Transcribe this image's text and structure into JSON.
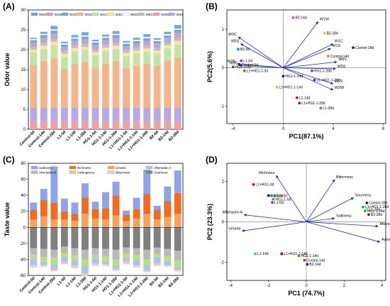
{
  "panels": {
    "A": "(A)",
    "B": "(B)",
    "C": "(C)",
    "D": "(D)"
  },
  "chart_data": [
    {
      "id": "A",
      "type": "bar",
      "stacked": true,
      "title": "",
      "xlabel": "",
      "ylabel": "Odor value",
      "ylim": [
        0,
        30
      ],
      "yticks": [
        0,
        5,
        10,
        15,
        20,
        25,
        30
      ],
      "categories": [
        "Control-0d",
        "Control-14d",
        "Control-28d",
        "L1-0d",
        "L1-14d",
        "L1-28d",
        "HG1-1-0d",
        "HG1-1-14d",
        "HG1-1-28d",
        "L1+HG1-1-0d",
        "L1+HG1-1-14d",
        "L1+HG1-1-28d",
        "B2-0d",
        "B2-14d",
        "B2-28d"
      ],
      "legend": {
        "placement": "top",
        "entries": [
          "W5S",
          "W1W",
          "W2S",
          "W1S",
          "W1C",
          "W3C",
          "W6S",
          "W5C",
          "W2W",
          "W3S"
        ]
      },
      "series": [
        {
          "name": "W2W",
          "color": "#f2a0a0",
          "values": [
            2.0,
            2.0,
            2.0,
            2.0,
            2.0,
            2.0,
            2.0,
            2.0,
            2.0,
            2.0,
            2.0,
            2.0,
            2.0,
            2.0,
            2.0
          ]
        },
        {
          "name": "W3S",
          "color": "#b9a9e3",
          "values": [
            3.5,
            3.5,
            3.5,
            3.5,
            3.5,
            3.5,
            3.5,
            3.5,
            3.5,
            3.5,
            3.5,
            3.5,
            3.5,
            3.5,
            3.5
          ]
        },
        {
          "name": "W1S",
          "color": "#f5b58a",
          "values": [
            10.7,
            11.7,
            12.4,
            9.7,
            10.9,
            11.4,
            10.1,
            11.0,
            11.7,
            9.9,
            10.5,
            11.0,
            10.5,
            11.8,
            12.6
          ]
        },
        {
          "name": "W1C",
          "color": "#c4e3a6",
          "values": [
            3.0,
            3.0,
            3.2,
            3.0,
            3.2,
            3.0,
            3.0,
            3.2,
            3.0,
            3.0,
            3.0,
            3.0,
            3.0,
            3.0,
            3.2
          ]
        },
        {
          "name": "W3C",
          "color": "#f6e79a",
          "values": [
            0.8,
            0.8,
            0.9,
            0.8,
            0.8,
            0.8,
            0.8,
            0.8,
            0.8,
            0.8,
            0.8,
            0.8,
            0.8,
            0.8,
            0.9
          ]
        },
        {
          "name": "W5C",
          "color": "#bfbfbf",
          "values": [
            0.7,
            0.7,
            0.7,
            0.7,
            0.7,
            0.7,
            0.7,
            0.7,
            0.7,
            0.7,
            0.7,
            0.7,
            0.7,
            0.7,
            0.7
          ]
        },
        {
          "name": "W1W",
          "color": "#c8a2c8",
          "values": [
            1.1,
            1.3,
            1.4,
            1.0,
            1.1,
            1.2,
            1.1,
            1.2,
            1.3,
            1.0,
            1.1,
            1.2,
            1.1,
            1.2,
            1.4
          ]
        },
        {
          "name": "W5S",
          "color": "#6fa8dc",
          "values": [
            0.6,
            0.7,
            0.7,
            0.6,
            0.6,
            0.7,
            0.6,
            0.6,
            0.7,
            0.6,
            0.6,
            0.7,
            0.6,
            0.6,
            0.7
          ]
        },
        {
          "name": "W6S",
          "color": "#ffffff",
          "values": [
            0.3,
            0.3,
            0.3,
            0.3,
            0.3,
            0.3,
            0.3,
            0.3,
            0.3,
            0.3,
            0.3,
            0.3,
            0.3,
            0.3,
            0.3
          ]
        },
        {
          "name": "W2S",
          "color": "#6fa8dc",
          "values": [
            0.3,
            0.5,
            0.9,
            0.4,
            0.6,
            0.8,
            0.4,
            0.5,
            0.7,
            0.4,
            0.5,
            0.7,
            0.4,
            0.6,
            0.9
          ]
        }
      ]
    },
    {
      "id": "B",
      "type": "scatter",
      "title": "",
      "xlabel": "PC1(87.1%)",
      "ylabel": "PC2(5.6%)",
      "xlim": [
        -4.5,
        8.2
      ],
      "ylim": [
        -1.45,
        1.5
      ],
      "xticks": [
        -4,
        0,
        4,
        8
      ],
      "yticks": [
        -1,
        0,
        1
      ],
      "points": [
        {
          "label": "B2-14d",
          "x": 0.8,
          "y": 1.3,
          "color": "#e040fb"
        },
        {
          "label": "B2-28d",
          "x": 3.3,
          "y": 0.9,
          "color": "#fbc02d"
        },
        {
          "label": "Control-28d",
          "x": 5.6,
          "y": 0.52,
          "color": "#222222"
        },
        {
          "label": "Control-14d",
          "x": 3.6,
          "y": 0.3,
          "color": "#c58a44"
        },
        {
          "label": "B2-0d",
          "x": -3.6,
          "y": 0.48,
          "color": "#1e88e5"
        },
        {
          "label": "L1-0d",
          "x": -3.35,
          "y": 0.18,
          "color": "#9c27b0"
        },
        {
          "label": "Control-0d",
          "x": -3.5,
          "y": 0.08,
          "color": "#333333"
        },
        {
          "label": "HG1-1-0d",
          "x": -4.0,
          "y": 0.02,
          "color": "#3949ab"
        },
        {
          "label": "L1+HG1-1-0d",
          "x": -3.1,
          "y": -0.08,
          "color": "#e53935"
        },
        {
          "label": "HG1-1-14d",
          "x": 0.0,
          "y": -0.22,
          "color": "#1a237e"
        },
        {
          "label": "HG1-1-28d",
          "x": 2.3,
          "y": -0.08,
          "color": "#795548"
        },
        {
          "label": "L1+HG1-1-28d",
          "x": 2.5,
          "y": -0.32,
          "color": "#7b1fa2"
        },
        {
          "label": "L1+HG1-1-14d",
          "x": -0.5,
          "y": -0.5,
          "color": "#76ff03"
        },
        {
          "label": "L1-14d",
          "x": 1.1,
          "y": -0.78,
          "color": "#b71c1c"
        },
        {
          "label": "L1+HG1-1-28d",
          "x": 1.3,
          "y": -0.92,
          "color": "#283593"
        },
        {
          "label": "L1-28d",
          "x": 3.0,
          "y": -1.05,
          "color": "#43a047"
        }
      ],
      "vectors": [
        {
          "label": "W1W",
          "x": 2.8,
          "y": 1.2
        },
        {
          "label": "W3C",
          "x": -3.6,
          "y": 0.8
        },
        {
          "label": "W5S",
          "x": -3.4,
          "y": 0.62
        },
        {
          "label": "W1S",
          "x": 3.8,
          "y": 0.5
        },
        {
          "label": "W1C",
          "x": 4.0,
          "y": 0.62
        },
        {
          "label": "W3S",
          "x": -3.7,
          "y": 0.1
        },
        {
          "label": "W6S",
          "x": 4.3,
          "y": 0.15
        },
        {
          "label": "W5S",
          "x": 4.2,
          "y": -0.03
        },
        {
          "label": "W2S",
          "x": 4.0,
          "y": -0.42
        },
        {
          "label": "W2W",
          "x": 4.0,
          "y": -0.58
        },
        {
          "label": "W5C",
          "x": -3.5,
          "y": 0.05
        }
      ]
    },
    {
      "id": "C",
      "type": "bar",
      "stacked": true,
      "title": "",
      "xlabel": "",
      "ylabel": "Taste value",
      "ylim": [
        -60,
        80
      ],
      "yticks": [
        -60,
        -40,
        -20,
        0,
        20,
        40,
        60,
        80
      ],
      "categories": [
        "Control-0d",
        "Control-14d",
        "Control-28d",
        "L1-0d",
        "L1-14d",
        "L1-28d",
        "HG1-1-0d",
        "HG1-1-14d",
        "HG1-1-28d",
        "L1+HG1-1-0d",
        "L1+HG1-1-14d",
        "L1+HG1-1-28d",
        "B2-0d",
        "B2-14d",
        "B2-28d"
      ],
      "legend": {
        "placement": "top",
        "entries": [
          "Saltness",
          "Richness",
          "Umami",
          "Aftertaste-A",
          "Aftertaste-B",
          "Astringency",
          "Bitterness",
          "Sourness"
        ]
      },
      "positive_series": [
        {
          "name": "Umami",
          "color": "#f5a25d",
          "values": [
            10,
            14,
            10,
            10,
            8,
            17,
            11,
            10,
            15,
            8,
            11,
            17,
            10,
            13,
            17
          ]
        },
        {
          "name": "Richness",
          "color": "#f26b21",
          "values": [
            12,
            20,
            21,
            10,
            9,
            20,
            12,
            14,
            25,
            8,
            12,
            25,
            12,
            20,
            26
          ]
        },
        {
          "name": "Saltness",
          "color": "#8fa3e6",
          "values": [
            9,
            14,
            45,
            16,
            14,
            18,
            9,
            20,
            17,
            5,
            14,
            30,
            5,
            18,
            28
          ]
        }
      ],
      "negative_series": [
        {
          "name": "Sourness",
          "color": "#808080",
          "values": [
            -26,
            -27,
            -28,
            -24,
            -26,
            -28,
            -26,
            -27,
            -28,
            -25,
            -26,
            -28,
            -25,
            -27,
            -29
          ]
        },
        {
          "name": "Aftertaste-B",
          "color": "#b9b9b9",
          "values": [
            -8,
            -10,
            -10,
            -8,
            -9,
            -12,
            -8,
            -9,
            -12,
            -8,
            -9,
            -12,
            -8,
            -9,
            -12
          ]
        },
        {
          "name": "Astringency",
          "color": "#b7e07d",
          "values": [
            -5,
            -6,
            -8,
            -5,
            -6,
            -8,
            -5,
            -6,
            -8,
            -5,
            -6,
            -8,
            -4,
            -6,
            -8
          ]
        },
        {
          "name": "Aftertaste-A",
          "color": "#a9c6e8",
          "values": [
            -8,
            -4,
            -7,
            -6,
            -7,
            -10,
            -6,
            -4,
            -4,
            -5,
            -6,
            -6,
            -8,
            -5,
            -4
          ]
        },
        {
          "name": "Bitterness",
          "color": "#f2c9c0",
          "values": [
            -3,
            -2,
            -2,
            -3,
            -3,
            -3,
            -3,
            -2,
            -2,
            -3,
            -3,
            -2,
            -3,
            -2,
            -2
          ]
        }
      ]
    },
    {
      "id": "D",
      "type": "scatter",
      "title": "",
      "xlabel": "PC1 (74.7%)",
      "ylabel": "PC2 (23.3%)",
      "xlim": [
        -4.2,
        4.2
      ],
      "ylim": [
        -2.9,
        2.9
      ],
      "xticks": [
        -4,
        -2,
        0,
        2,
        4
      ],
      "yticks": [
        -2,
        0,
        2
      ],
      "points": [
        {
          "label": "L1+HG1-0d",
          "x": -2.8,
          "y": 1.85,
          "color": "#ad1457"
        },
        {
          "label": "Control-0d",
          "x": -2.0,
          "y": 1.3,
          "color": "#222222"
        },
        {
          "label": "B2-0d",
          "x": -1.85,
          "y": 1.3,
          "color": "#1e88e5"
        },
        {
          "label": "HG1-1-0d",
          "x": -1.75,
          "y": 1.12,
          "color": "#43a047"
        },
        {
          "label": "L1-0d",
          "x": -1.8,
          "y": 0.96,
          "color": "#9c27b0"
        },
        {
          "label": "Control-28d",
          "x": 3.2,
          "y": 0.94,
          "color": "#222222"
        },
        {
          "label": "L1+HG1-1-28d",
          "x": 3.0,
          "y": 0.74,
          "color": "#1e88e5"
        },
        {
          "label": "HG1-1-28d",
          "x": 3.1,
          "y": 0.54,
          "color": "#43a047"
        },
        {
          "label": "L1-28d",
          "x": 3.2,
          "y": 0.62,
          "color": "#76ff03"
        },
        {
          "label": "B2-28d",
          "x": 3.3,
          "y": 0.36,
          "color": "#283593"
        },
        {
          "label": "L1-14d",
          "x": -2.7,
          "y": -1.58,
          "color": "#26c6da"
        },
        {
          "label": "L1+HG1-1-14d",
          "x": -1.3,
          "y": -1.58,
          "color": "#8e0000"
        },
        {
          "label": "HG1-1-14d",
          "x": -0.4,
          "y": -1.68,
          "color": "#827717"
        },
        {
          "label": "Control-14d",
          "x": -0.1,
          "y": -1.9,
          "color": "#c0392b"
        },
        {
          "label": "B2-14d",
          "x": 0.05,
          "y": -2.1,
          "color": "#1a237e"
        }
      ],
      "vectors": [
        {
          "label": "Richness",
          "x": -1.6,
          "y": 2.3
        },
        {
          "label": "Bitterness",
          "x": 1.5,
          "y": 2.1
        },
        {
          "label": "Sourness",
          "x": 2.5,
          "y": 1.2
        },
        {
          "label": "Aftertaste-A",
          "x": -3.3,
          "y": 0.35
        },
        {
          "label": "Umami",
          "x": -3.4,
          "y": -0.45
        },
        {
          "label": "Saltiness",
          "x": 1.5,
          "y": 0.18
        },
        {
          "label": "Aftertaste-B",
          "x": 3.8,
          "y": -0.22
        },
        {
          "label": "Astringency",
          "x": 3.9,
          "y": -1.0
        }
      ]
    }
  ]
}
